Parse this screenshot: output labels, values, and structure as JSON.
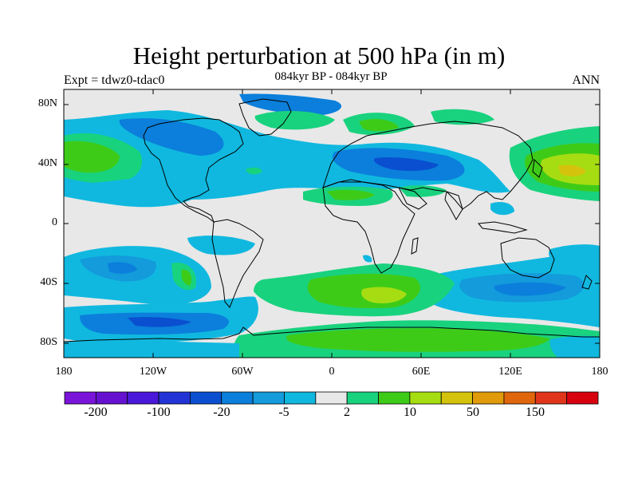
{
  "title": "Height perturbation at 500 hPa (in m)",
  "subtitle_left": "Expt = tdwz0-tdac0",
  "subtitle_center": "084kyr BP - 084kyr BP",
  "subtitle_right": "ANN",
  "lat_labels": [
    "80N",
    "40N",
    "0",
    "40S",
    "80S"
  ],
  "lon_labels": [
    "180",
    "120W",
    "60W",
    "0",
    "60E",
    "120E",
    "180"
  ],
  "colorbar": {
    "colors": [
      "#7a14d9",
      "#6611cf",
      "#4a18d8",
      "#2334d6",
      "#0a4fd0",
      "#0b7fdb",
      "#139bdc",
      "#10b8df",
      "#e8e8e8",
      "#19d27e",
      "#3ecb18",
      "#a6dd12",
      "#d4c20c",
      "#e09a0a",
      "#e0660b",
      "#e0351a",
      "#d8020f"
    ],
    "tick_labels": [
      "-200",
      "-100",
      "-20",
      "-5",
      "2",
      "10",
      "50",
      "150"
    ]
  },
  "colors": {
    "neutral": "#e8e8e8",
    "light_blue": "#10b8df",
    "mid_blue": "#139bdc",
    "blue": "#0b7fdb",
    "dark_blue": "#0a4fd0",
    "light_green": "#19d27e",
    "green": "#3ecb18",
    "yellow_green": "#a6dd12",
    "yellow": "#d4c20c"
  }
}
